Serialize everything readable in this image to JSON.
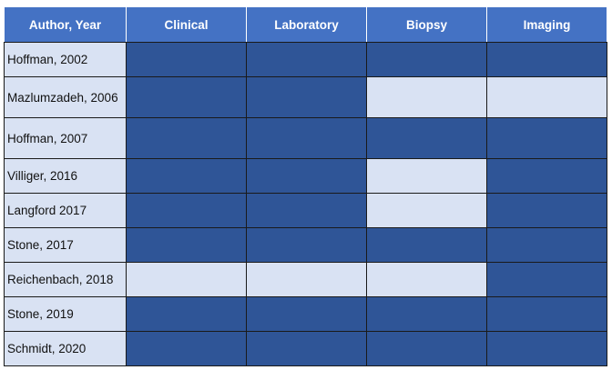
{
  "colors": {
    "header": "#4472c4",
    "filled": "#2f5597",
    "empty": "#d9e2f3"
  },
  "table": {
    "headers": [
      "Author, Year",
      "Clinical",
      "Laboratory",
      "Biopsy",
      "Imaging"
    ],
    "rows": [
      {
        "author": "Hoffman, 2002",
        "cells": [
          true,
          true,
          true,
          true
        ]
      },
      {
        "author": "Mazlumzadeh, 2006",
        "cells": [
          true,
          true,
          false,
          false
        ]
      },
      {
        "author": "Hoffman, 2007",
        "cells": [
          true,
          true,
          true,
          true
        ]
      },
      {
        "author": "Villiger, 2016",
        "cells": [
          true,
          true,
          false,
          true
        ]
      },
      {
        "author": "Langford 2017",
        "cells": [
          true,
          true,
          false,
          true
        ]
      },
      {
        "author": "Stone, 2017",
        "cells": [
          true,
          true,
          true,
          true
        ]
      },
      {
        "author": "Reichenbach, 2018",
        "cells": [
          false,
          false,
          false,
          true
        ]
      },
      {
        "author": "Stone, 2019",
        "cells": [
          true,
          true,
          true,
          true
        ]
      },
      {
        "author": "Schmidt, 2020",
        "cells": [
          true,
          true,
          true,
          true
        ]
      }
    ]
  }
}
